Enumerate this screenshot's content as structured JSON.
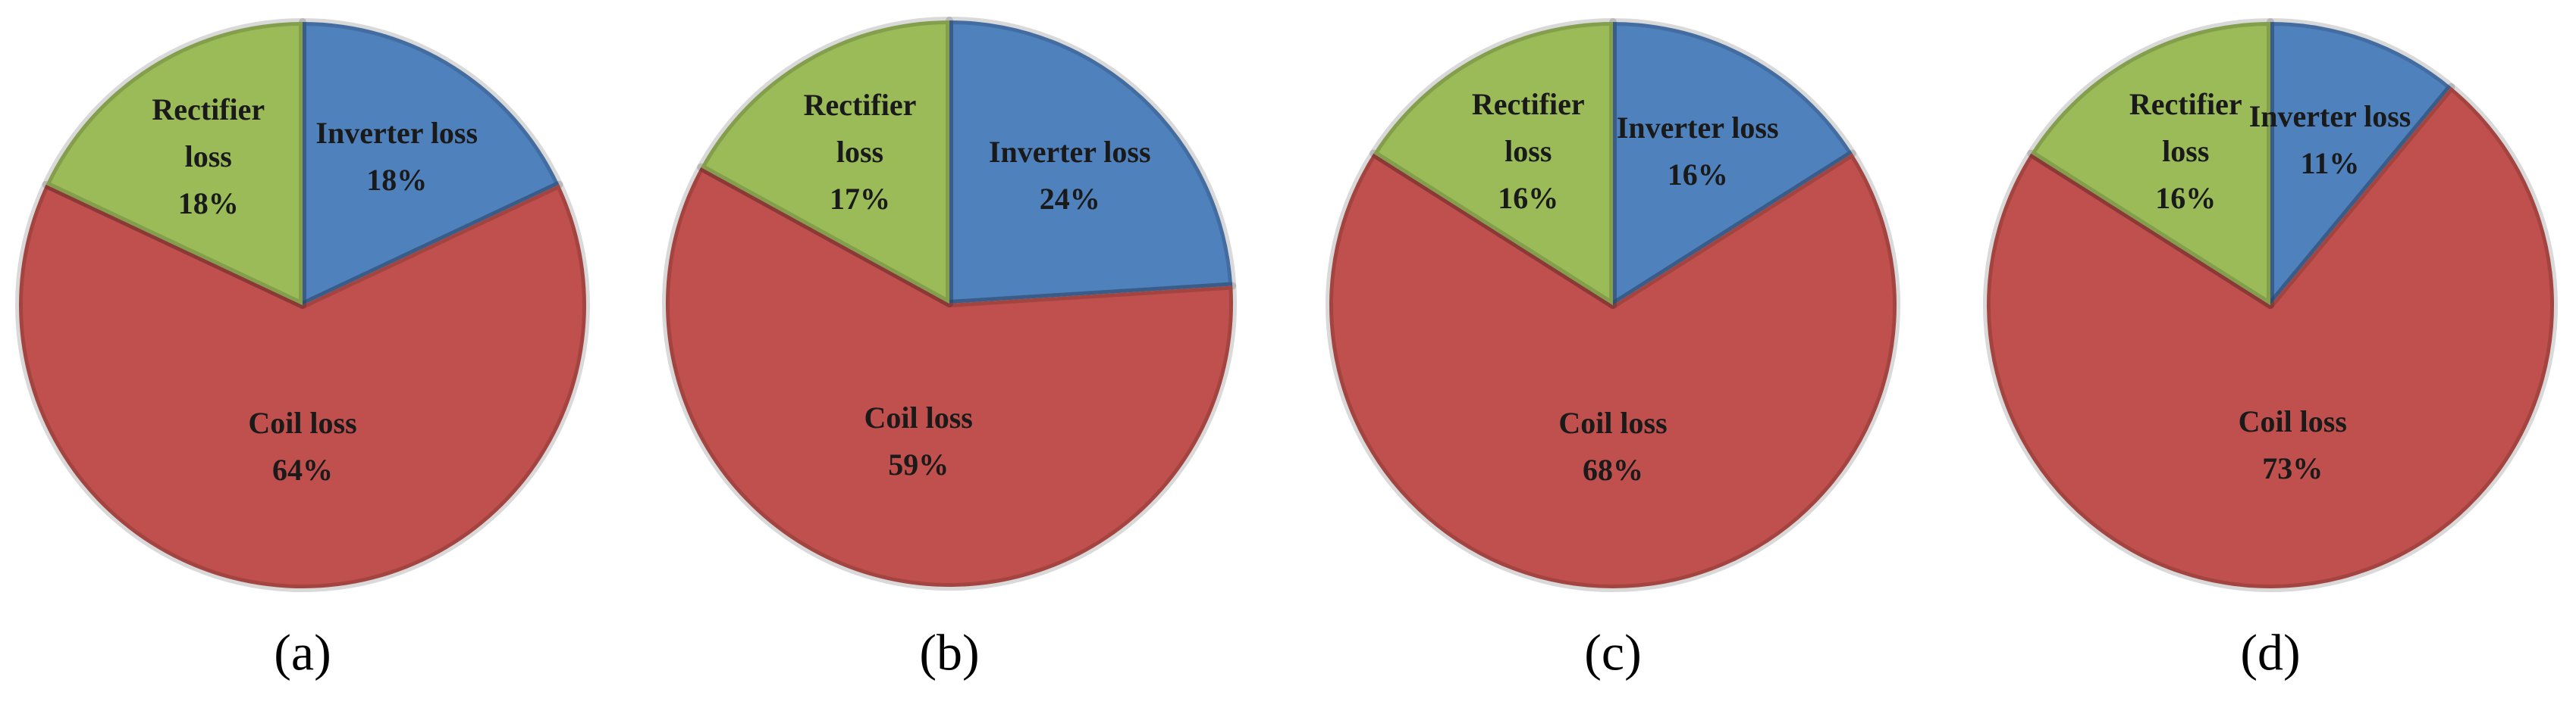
{
  "chart_data": [
    {
      "type": "pie",
      "caption": "(a)",
      "categories": [
        "Inverter loss",
        "Coil loss",
        "Rectifier loss"
      ],
      "values": [
        18,
        64,
        18
      ],
      "value_labels": [
        "18%",
        "64%",
        "18%"
      ],
      "colors": [
        "#4f81bd",
        "#c0504d",
        "#9bbb59"
      ]
    },
    {
      "type": "pie",
      "caption": "(b)",
      "categories": [
        "Inverter loss",
        "Coil loss",
        "Rectifier loss"
      ],
      "values": [
        24,
        59,
        17
      ],
      "value_labels": [
        "24%",
        "59%",
        "17%"
      ],
      "colors": [
        "#4f81bd",
        "#c0504d",
        "#9bbb59"
      ]
    },
    {
      "type": "pie",
      "caption": "(c)",
      "categories": [
        "Inverter loss",
        "Coil loss",
        "Rectifier loss"
      ],
      "values": [
        16,
        68,
        16
      ],
      "value_labels": [
        "16%",
        "68%",
        "16%"
      ],
      "colors": [
        "#4f81bd",
        "#c0504d",
        "#9bbb59"
      ]
    },
    {
      "type": "pie",
      "caption": "(d)",
      "categories": [
        "Inverter loss",
        "Coil loss",
        "Rectifier loss"
      ],
      "values": [
        11,
        73,
        16
      ],
      "value_labels": [
        "11%",
        "73%",
        "16%"
      ],
      "colors": [
        "#4f81bd",
        "#c0504d",
        "#9bbb59"
      ]
    }
  ]
}
